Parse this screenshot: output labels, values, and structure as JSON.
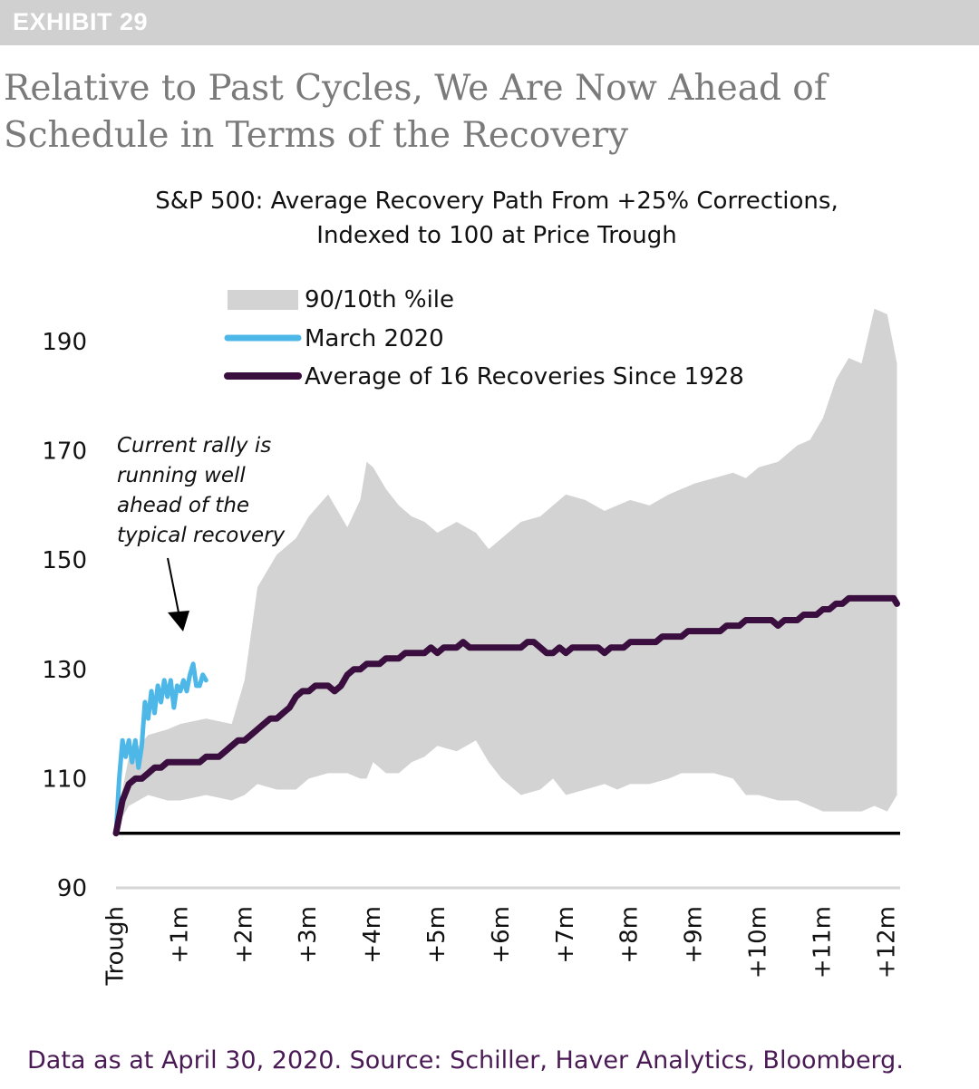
{
  "exhibit": {
    "label": "EXHIBIT 29"
  },
  "headline": {
    "text": "Relative to Past Cycles, We Are Now Ahead of Schedule in Terms of the Recovery"
  },
  "footer": {
    "source": "Data as at April 30, 2020. Source: Schiller, Haver Analytics, Bloomberg."
  },
  "colors": {
    "band": "#d3d3d3",
    "march2020": "#4db8e8",
    "average": "#3a0e3e",
    "baseline": "#000000",
    "footer": "#4a1a55",
    "headline": "#7a7a7a"
  },
  "chart_data": {
    "type": "line",
    "title": "S&P 500: Average Recovery Path From +25% Corrections,",
    "subtitle": "Indexed to 100 at Price Trough",
    "xlabel": "",
    "ylabel": "",
    "ylim": [
      90,
      200
    ],
    "xlim": [
      0,
      12.2
    ],
    "yticks": [
      90,
      110,
      130,
      150,
      170,
      190
    ],
    "xticks": [
      {
        "label": "Trough",
        "value": 0
      },
      {
        "label": "+1m",
        "value": 1
      },
      {
        "label": "+2m",
        "value": 2
      },
      {
        "label": "+3m",
        "value": 3
      },
      {
        "label": "+4m",
        "value": 4
      },
      {
        "label": "+5m",
        "value": 5
      },
      {
        "label": "+6m",
        "value": 6
      },
      {
        "label": "+7m",
        "value": 7
      },
      {
        "label": "+8m",
        "value": 8
      },
      {
        "label": "+9m",
        "value": 9
      },
      {
        "label": "+10m",
        "value": 10
      },
      {
        "label": "+11m",
        "value": 11
      },
      {
        "label": "+12m",
        "value": 12
      }
    ],
    "legend": [
      "90/10th %ile",
      "March 2020",
      "Average of 16 Recoveries Since 1928"
    ],
    "legend_position": "top-left",
    "annotation": "Current rally is running well ahead of the typical recovery",
    "annotation_lines": [
      "Current rally is",
      "running well",
      "ahead of the",
      "typical recovery"
    ],
    "reference_line": 100,
    "band": {
      "name": "90/10th %ile",
      "x": [
        0,
        0.2,
        0.5,
        0.8,
        1.0,
        1.4,
        1.8,
        2.0,
        2.2,
        2.5,
        2.8,
        3.0,
        3.3,
        3.6,
        3.8,
        3.9,
        4.0,
        4.2,
        4.4,
        4.6,
        4.8,
        5.0,
        5.3,
        5.6,
        5.8,
        6.0,
        6.3,
        6.6,
        6.8,
        7.0,
        7.3,
        7.6,
        7.8,
        8.0,
        8.3,
        8.6,
        8.8,
        9.0,
        9.3,
        9.6,
        9.8,
        10.0,
        10.3,
        10.6,
        10.8,
        11.0,
        11.2,
        11.4,
        11.6,
        11.8,
        12.0,
        12.15
      ],
      "upper": [
        102,
        114,
        118,
        119,
        120,
        121,
        120,
        128,
        145,
        151,
        154,
        158,
        162,
        156,
        161,
        168,
        167,
        163,
        160,
        158,
        157,
        155,
        157,
        155,
        152,
        154,
        157,
        158,
        160,
        162,
        161,
        159,
        160,
        161,
        160,
        162,
        163,
        164,
        165,
        166,
        165,
        167,
        168,
        171,
        172,
        176,
        183,
        187,
        186,
        196,
        195,
        186
      ],
      "lower": [
        101,
        105,
        107,
        106,
        106,
        107,
        106,
        107,
        109,
        108,
        108,
        110,
        111,
        111,
        110,
        110,
        113,
        111,
        111,
        113,
        114,
        116,
        115,
        117,
        113,
        110,
        107,
        108,
        110,
        107,
        108,
        109,
        108,
        109,
        109,
        110,
        111,
        111,
        111,
        110,
        107,
        107,
        106,
        106,
        105,
        104,
        104,
        104,
        104,
        105,
        104,
        107
      ]
    },
    "series": [
      {
        "name": "March 2020",
        "x": [
          0,
          0.05,
          0.1,
          0.15,
          0.2,
          0.25,
          0.3,
          0.35,
          0.4,
          0.45,
          0.5,
          0.55,
          0.6,
          0.65,
          0.7,
          0.75,
          0.8,
          0.85,
          0.9,
          0.95,
          1.0,
          1.05,
          1.1,
          1.15,
          1.2,
          1.25,
          1.3,
          1.35,
          1.4
        ],
        "values": [
          100,
          110,
          117,
          114,
          117,
          113,
          117,
          112,
          116,
          124,
          121,
          126,
          122,
          127,
          124,
          128,
          125,
          128,
          123,
          127,
          126,
          128,
          126,
          129,
          131,
          127,
          127,
          129,
          128
        ]
      },
      {
        "name": "Average of 16 Recoveries Since 1928",
        "x": [
          0,
          0.1,
          0.2,
          0.3,
          0.4,
          0.5,
          0.6,
          0.7,
          0.8,
          0.9,
          1.0,
          1.1,
          1.2,
          1.3,
          1.4,
          1.5,
          1.6,
          1.7,
          1.8,
          1.9,
          2.0,
          2.1,
          2.2,
          2.3,
          2.4,
          2.5,
          2.6,
          2.7,
          2.8,
          2.9,
          3.0,
          3.1,
          3.2,
          3.3,
          3.4,
          3.5,
          3.6,
          3.7,
          3.8,
          3.9,
          4.0,
          4.1,
          4.2,
          4.3,
          4.4,
          4.5,
          4.6,
          4.7,
          4.8,
          4.9,
          5.0,
          5.1,
          5.2,
          5.3,
          5.4,
          5.5,
          5.6,
          5.7,
          5.8,
          5.9,
          6.0,
          6.1,
          6.2,
          6.3,
          6.4,
          6.5,
          6.6,
          6.7,
          6.8,
          6.9,
          7.0,
          7.1,
          7.2,
          7.3,
          7.4,
          7.5,
          7.6,
          7.7,
          7.8,
          7.9,
          8.0,
          8.1,
          8.2,
          8.3,
          8.4,
          8.5,
          8.6,
          8.7,
          8.8,
          8.9,
          9.0,
          9.1,
          9.2,
          9.3,
          9.4,
          9.5,
          9.6,
          9.7,
          9.8,
          9.9,
          10.0,
          10.1,
          10.2,
          10.3,
          10.4,
          10.5,
          10.6,
          10.7,
          10.8,
          10.9,
          11.0,
          11.1,
          11.2,
          11.3,
          11.4,
          11.5,
          11.6,
          11.7,
          11.8,
          11.9,
          12.0,
          12.1,
          12.15
        ],
        "values": [
          100,
          106,
          109,
          110,
          110,
          111,
          112,
          112,
          113,
          113,
          113,
          113,
          113,
          113,
          114,
          114,
          114,
          115,
          116,
          117,
          117,
          118,
          119,
          120,
          121,
          121,
          122,
          123,
          125,
          126,
          126,
          127,
          127,
          127,
          126,
          127,
          129,
          130,
          130,
          131,
          131,
          131,
          132,
          132,
          132,
          133,
          133,
          133,
          133,
          134,
          133,
          134,
          134,
          134,
          135,
          134,
          134,
          134,
          134,
          134,
          134,
          134,
          134,
          134,
          135,
          135,
          134,
          133,
          133,
          134,
          133,
          134,
          134,
          134,
          134,
          134,
          133,
          134,
          134,
          134,
          135,
          135,
          135,
          135,
          135,
          136,
          136,
          136,
          136,
          137,
          137,
          137,
          137,
          137,
          137,
          138,
          138,
          138,
          139,
          139,
          139,
          139,
          139,
          138,
          139,
          139,
          139,
          140,
          140,
          140,
          141,
          141,
          142,
          142,
          143,
          143,
          143,
          143,
          143,
          143,
          143,
          143,
          142
        ]
      }
    ]
  }
}
